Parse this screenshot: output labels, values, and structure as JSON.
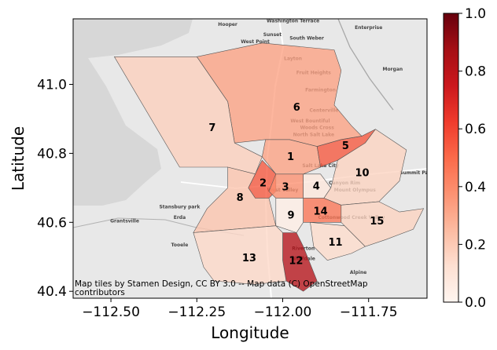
{
  "chart_data": {
    "type": "choropleth",
    "xlabel": "Longitude",
    "ylabel": "Latitude",
    "xlim": [
      -112.61,
      -111.58
    ],
    "ylim": [
      40.38,
      41.19
    ],
    "x_ticks": [
      -112.5,
      -112.25,
      -112.0,
      -111.75
    ],
    "x_tick_labels": [
      "−112.50",
      "−112.25",
      "−112.00",
      "−111.75"
    ],
    "y_ticks": [
      40.4,
      40.6,
      40.8,
      41.0
    ],
    "y_tick_labels": [
      "40.4",
      "40.6",
      "40.8",
      "41.0"
    ],
    "colorbar": {
      "range": [
        0.0,
        1.0
      ],
      "ticks": [
        0.0,
        0.2,
        0.4,
        0.6,
        0.8,
        1.0
      ],
      "tick_labels": [
        "0.0",
        "0.2",
        "0.4",
        "0.6",
        "0.8",
        "1.0"
      ],
      "colormap": "Reds"
    },
    "attribution": "Map tiles by Stamen Design, CC BY 3.0 -- Map data (C) OpenStreetMap contributors",
    "regions": [
      {
        "label": "1",
        "value": 0.33,
        "polygon": [
          [
            -112.05,
            40.84
          ],
          [
            -111.98,
            40.84
          ],
          [
            -111.9,
            40.82
          ],
          [
            -111.89,
            40.76
          ],
          [
            -111.94,
            40.74
          ],
          [
            -112.02,
            40.74
          ],
          [
            -112.06,
            40.79
          ]
        ]
      },
      {
        "label": "2",
        "value": 0.55,
        "polygon": [
          [
            -112.06,
            40.78
          ],
          [
            -112.02,
            40.74
          ],
          [
            -112.02,
            40.69
          ],
          [
            -112.04,
            40.67
          ],
          [
            -112.08,
            40.67
          ],
          [
            -112.1,
            40.7
          ],
          [
            -112.08,
            40.74
          ]
        ]
      },
      {
        "label": "3",
        "value": 0.38,
        "polygon": [
          [
            -112.02,
            40.74
          ],
          [
            -111.94,
            40.74
          ],
          [
            -111.94,
            40.67
          ],
          [
            -112.02,
            40.67
          ],
          [
            -112.04,
            40.69
          ]
        ]
      },
      {
        "label": "4",
        "value": 0.08,
        "polygon": [
          [
            -111.94,
            40.74
          ],
          [
            -111.89,
            40.74
          ],
          [
            -111.86,
            40.7
          ],
          [
            -111.88,
            40.67
          ],
          [
            -111.94,
            40.67
          ]
        ]
      },
      {
        "label": "5",
        "value": 0.55,
        "polygon": [
          [
            -111.9,
            40.82
          ],
          [
            -111.83,
            40.84
          ],
          [
            -111.77,
            40.85
          ],
          [
            -111.73,
            40.87
          ],
          [
            -111.76,
            40.83
          ],
          [
            -111.84,
            40.78
          ],
          [
            -111.89,
            40.76
          ]
        ]
      },
      {
        "label": "6",
        "value": 0.33,
        "polygon": [
          [
            -112.25,
            41.08
          ],
          [
            -112.06,
            41.12
          ],
          [
            -111.85,
            41.1
          ],
          [
            -111.83,
            41.04
          ],
          [
            -111.85,
            40.94
          ],
          [
            -111.8,
            40.88
          ],
          [
            -111.77,
            40.85
          ],
          [
            -111.83,
            40.84
          ],
          [
            -111.9,
            40.82
          ],
          [
            -111.98,
            40.84
          ],
          [
            -112.05,
            40.84
          ],
          [
            -112.14,
            40.83
          ],
          [
            -112.16,
            40.95
          ]
        ]
      },
      {
        "label": "7",
        "value": 0.18,
        "polygon": [
          [
            -112.49,
            41.08
          ],
          [
            -112.25,
            41.08
          ],
          [
            -112.16,
            40.95
          ],
          [
            -112.14,
            40.83
          ],
          [
            -112.06,
            40.79
          ],
          [
            -112.08,
            40.74
          ],
          [
            -112.16,
            40.76
          ],
          [
            -112.3,
            40.76
          ]
        ]
      },
      {
        "label": "8",
        "value": 0.22,
        "polygon": [
          [
            -112.16,
            40.76
          ],
          [
            -112.08,
            40.74
          ],
          [
            -112.1,
            40.7
          ],
          [
            -112.08,
            40.67
          ],
          [
            -112.04,
            40.67
          ],
          [
            -112.02,
            40.59
          ],
          [
            -112.26,
            40.57
          ],
          [
            -112.22,
            40.64
          ],
          [
            -112.16,
            40.7
          ]
        ]
      },
      {
        "label": "9",
        "value": 0.04,
        "polygon": [
          [
            -112.02,
            40.67
          ],
          [
            -111.94,
            40.67
          ],
          [
            -111.94,
            40.6
          ],
          [
            -111.96,
            40.57
          ],
          [
            -112.02,
            40.59
          ]
        ]
      },
      {
        "label": "10",
        "value": 0.17,
        "polygon": [
          [
            -111.76,
            40.83
          ],
          [
            -111.73,
            40.87
          ],
          [
            -111.64,
            40.81
          ],
          [
            -111.66,
            40.72
          ],
          [
            -111.72,
            40.66
          ],
          [
            -111.83,
            40.65
          ],
          [
            -111.88,
            40.67
          ],
          [
            -111.86,
            40.7
          ],
          [
            -111.84,
            40.78
          ]
        ]
      },
      {
        "label": "11",
        "value": 0.14,
        "polygon": [
          [
            -111.92,
            40.6
          ],
          [
            -111.82,
            40.59
          ],
          [
            -111.76,
            40.53
          ],
          [
            -111.8,
            40.51
          ],
          [
            -111.87,
            40.49
          ],
          [
            -111.91,
            40.53
          ]
        ]
      },
      {
        "label": "12",
        "value": 0.82,
        "polygon": [
          [
            -112.0,
            40.57
          ],
          [
            -111.96,
            40.57
          ],
          [
            -111.94,
            40.53
          ],
          [
            -111.9,
            40.43
          ],
          [
            -111.94,
            40.4
          ],
          [
            -111.99,
            40.43
          ],
          [
            -112.0,
            40.49
          ]
        ]
      },
      {
        "label": "13",
        "value": 0.15,
        "polygon": [
          [
            -112.26,
            40.57
          ],
          [
            -112.02,
            40.59
          ],
          [
            -112.0,
            40.57
          ],
          [
            -112.0,
            40.49
          ],
          [
            -111.99,
            40.43
          ],
          [
            -112.08,
            40.42
          ],
          [
            -112.2,
            40.43
          ],
          [
            -112.23,
            40.47
          ]
        ]
      },
      {
        "label": "14",
        "value": 0.47,
        "polygon": [
          [
            -111.94,
            40.67
          ],
          [
            -111.88,
            40.67
          ],
          [
            -111.83,
            40.65
          ],
          [
            -111.83,
            40.6
          ],
          [
            -111.92,
            40.6
          ],
          [
            -111.94,
            40.6
          ]
        ]
      },
      {
        "label": "15",
        "value": 0.17,
        "polygon": [
          [
            -111.83,
            40.65
          ],
          [
            -111.72,
            40.66
          ],
          [
            -111.66,
            40.63
          ],
          [
            -111.59,
            40.64
          ],
          [
            -111.62,
            40.58
          ],
          [
            -111.7,
            40.55
          ],
          [
            -111.76,
            40.53
          ],
          [
            -111.82,
            40.59
          ],
          [
            -111.83,
            40.6
          ]
        ]
      }
    ]
  },
  "basemap": {
    "places": [
      {
        "name": "Hooper",
        "lon": -112.16,
        "lat": 41.17
      },
      {
        "name": "Washington Terrace",
        "lon": -111.97,
        "lat": 41.18
      },
      {
        "name": "Sunset",
        "lon": -112.03,
        "lat": 41.14
      },
      {
        "name": "South Weber",
        "lon": -111.93,
        "lat": 41.13
      },
      {
        "name": "West Point",
        "lon": -112.08,
        "lat": 41.12
      },
      {
        "name": "Enterprise",
        "lon": -111.75,
        "lat": 41.16
      },
      {
        "name": "Layton",
        "lon": -111.97,
        "lat": 41.07
      },
      {
        "name": "Morgan",
        "lon": -111.68,
        "lat": 41.04
      },
      {
        "name": "Fruit Heights",
        "lon": -111.91,
        "lat": 41.03
      },
      {
        "name": "Farmington",
        "lon": -111.89,
        "lat": 40.98
      },
      {
        "name": "Centerville",
        "lon": -111.88,
        "lat": 40.92
      },
      {
        "name": "West Bountiful",
        "lon": -111.92,
        "lat": 40.89
      },
      {
        "name": "Woods Cross",
        "lon": -111.9,
        "lat": 40.87
      },
      {
        "name": "North Salt Lake",
        "lon": -111.91,
        "lat": 40.85
      },
      {
        "name": "Salt Lake City",
        "lon": -111.89,
        "lat": 40.76
      },
      {
        "name": "West Valley",
        "lon": -112.0,
        "lat": 40.69
      },
      {
        "name": "Canyon Rim",
        "lon": -111.82,
        "lat": 40.71
      },
      {
        "name": "Mount Olympus",
        "lon": -111.79,
        "lat": 40.69
      },
      {
        "name": "Summit Park",
        "lon": -111.61,
        "lat": 40.74
      },
      {
        "name": "Stansbury park",
        "lon": -112.3,
        "lat": 40.64
      },
      {
        "name": "Erda",
        "lon": -112.3,
        "lat": 40.61
      },
      {
        "name": "Grantsville",
        "lon": -112.46,
        "lat": 40.6
      },
      {
        "name": "Cottonwood Creek Valley",
        "lon": -111.8,
        "lat": 40.61
      },
      {
        "name": "Tooele",
        "lon": -112.3,
        "lat": 40.53
      },
      {
        "name": "Riverton",
        "lon": -111.94,
        "lat": 40.52
      },
      {
        "name": "Bluffdale",
        "lon": -111.94,
        "lat": 40.49
      },
      {
        "name": "Alpine",
        "lon": -111.78,
        "lat": 40.45
      }
    ]
  }
}
